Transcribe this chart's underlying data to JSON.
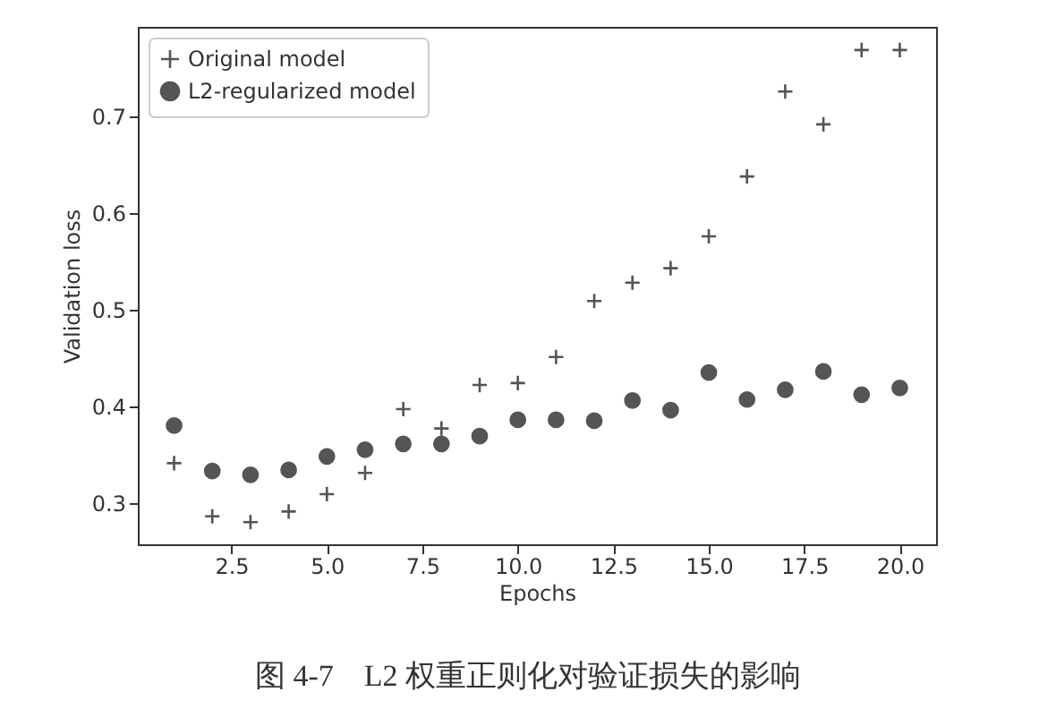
{
  "chart_data": {
    "type": "scatter",
    "xlabel": "Epochs",
    "ylabel": "Validation loss",
    "annotations": [
      "图 4-7　L2 权重正则化对验证损失的影响"
    ],
    "x": [
      1,
      2,
      3,
      4,
      5,
      6,
      7,
      8,
      9,
      10,
      11,
      12,
      13,
      14,
      15,
      16,
      17,
      18,
      19,
      20
    ],
    "series": [
      {
        "name": "Original model",
        "color": "#555555",
        "marker": "cross",
        "values": [
          0.341,
          0.286,
          0.28,
          0.291,
          0.309,
          0.331,
          0.397,
          0.377,
          0.422,
          0.424,
          0.451,
          0.509,
          0.528,
          0.543,
          0.576,
          0.638,
          0.726,
          0.692,
          0.769,
          0.769
        ]
      },
      {
        "name": "L2-regularized model",
        "color": "#555555",
        "marker": "circle",
        "values": [
          0.38,
          0.333,
          0.329,
          0.334,
          0.348,
          0.355,
          0.361,
          0.361,
          0.369,
          0.386,
          0.386,
          0.385,
          0.406,
          0.396,
          0.435,
          0.407,
          0.417,
          0.436,
          0.412,
          0.419
        ]
      }
    ],
    "xlim": [
      0.05,
      20.95
    ],
    "ylim": [
      0.257,
      0.793
    ],
    "xticks": [
      2.5,
      {
        "value": 5,
        "label": "5.0"
      },
      7.5,
      {
        "value": 10,
        "label": "10.0"
      },
      12.5,
      {
        "value": 15,
        "label": "15.0"
      },
      17.5,
      {
        "value": 20,
        "label": "20.0"
      }
    ],
    "yticks": [
      0.3,
      0.4,
      0.5,
      0.6,
      0.7
    ],
    "legend": "top left",
    "grid": false
  }
}
